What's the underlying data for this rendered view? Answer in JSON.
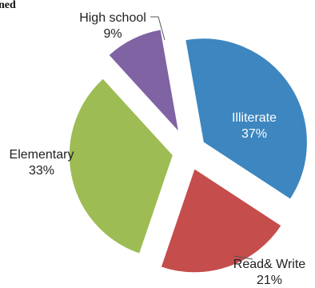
{
  "chart_data": {
    "type": "pie",
    "exploded": true,
    "title_fragment": "ned",
    "slices": [
      {
        "name": "Illiterate",
        "value": 37,
        "value_label": "37%",
        "color": "#3d86bf",
        "label_inside": true
      },
      {
        "name": "Read& Write",
        "value": 21,
        "value_label": "21%",
        "color": "#c54d4c",
        "label_inside": false
      },
      {
        "name": "Elementary",
        "value": 33,
        "value_label": "33%",
        "color": "#9dbc53",
        "label_inside": false
      },
      {
        "name": "High school",
        "value": 9,
        "value_label": "9%",
        "color": "#7f63a3",
        "label_inside": false
      }
    ],
    "legend": "none"
  }
}
